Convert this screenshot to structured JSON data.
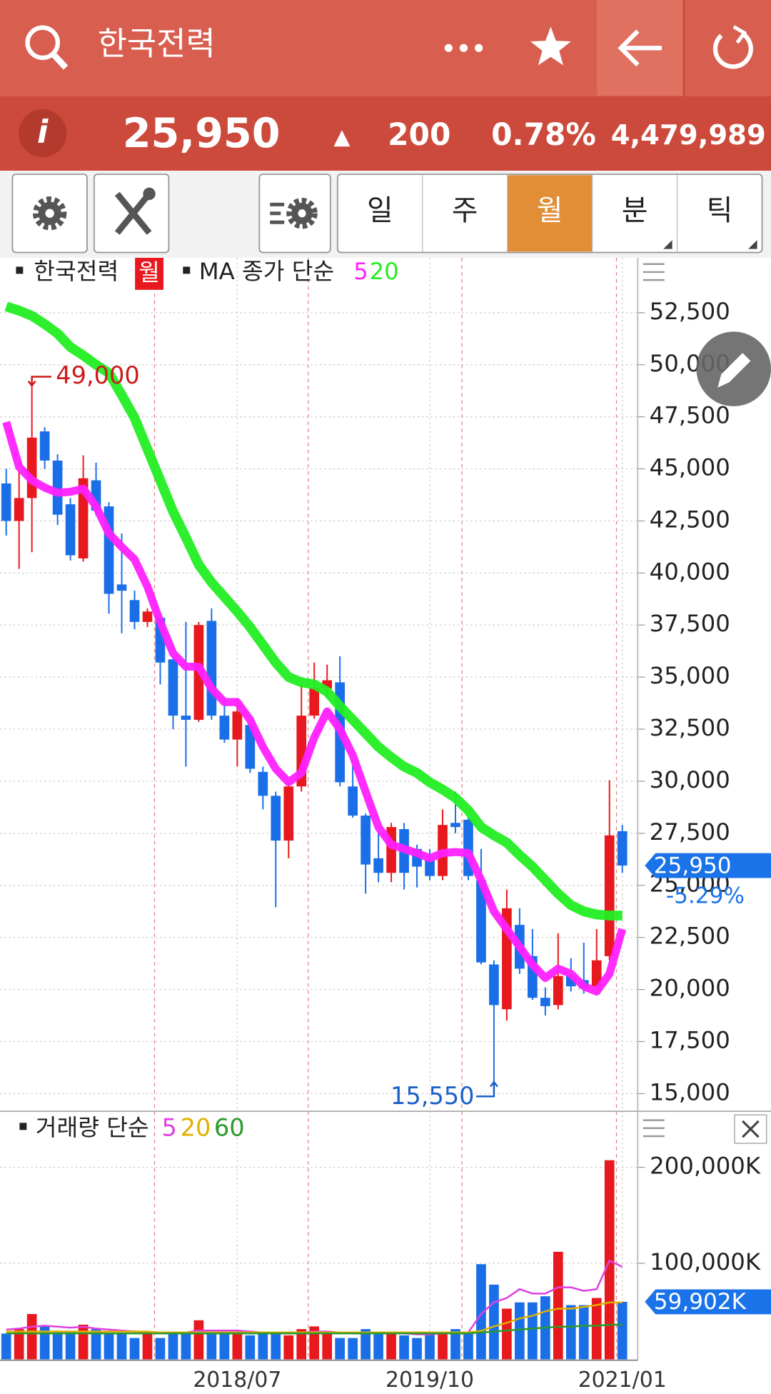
{
  "header": {
    "title": "한국전력"
  },
  "quote": {
    "price": "25,950",
    "arrow": "▲",
    "change": "200",
    "change_pct": "0.78%",
    "volume": "4,479,989"
  },
  "tabs": [
    "일",
    "주",
    "월",
    "분",
    "틱"
  ],
  "chart_data": [
    {
      "type": "candlestick",
      "legend_label": "한국전력",
      "period": "월",
      "legend_title": "MA 종가 단순",
      "up_color": "#e8191e",
      "down_color": "#1a6fe8",
      "ylim": [
        14150,
        55050
      ],
      "yticks": [
        {
          "value": 15000,
          "label": "15,000"
        },
        {
          "value": 17500,
          "label": "17,500"
        },
        {
          "value": 20000,
          "label": "20,000"
        },
        {
          "value": 22500,
          "label": "22,500"
        },
        {
          "value": 25000,
          "label": "25,000"
        },
        {
          "value": 27500,
          "label": "27,500"
        },
        {
          "value": 30000,
          "label": "30,000"
        },
        {
          "value": 32500,
          "label": "32,500"
        },
        {
          "value": 35000,
          "label": "35,000"
        },
        {
          "value": 37500,
          "label": "37,500"
        },
        {
          "value": 40000,
          "label": "40,000"
        },
        {
          "value": 42500,
          "label": "42,500"
        },
        {
          "value": 45000,
          "label": "45,000"
        },
        {
          "value": 47500,
          "label": "47,500"
        },
        {
          "value": 50000,
          "label": "50,000"
        },
        {
          "value": 52500,
          "label": "52,500"
        }
      ],
      "grid": true,
      "open": [
        44300,
        42500,
        43600,
        46800,
        45400,
        43300,
        40700,
        44450,
        43200,
        39450,
        38700,
        37650,
        37850,
        35850,
        33150,
        32950,
        37700,
        33150,
        32000,
        32700,
        30450,
        29300,
        27150,
        29750,
        33150,
        34450,
        34750,
        29750,
        28350,
        26300,
        25600,
        27700,
        26750,
        26200,
        25450,
        28000,
        28150,
        25250,
        21200,
        19050,
        23100,
        21600,
        19600,
        19250,
        20650,
        20450,
        20150,
        21600,
        27600
      ],
      "high": [
        45000,
        44900,
        49000,
        47000,
        45700,
        43600,
        45650,
        45300,
        43400,
        41900,
        39150,
        38300,
        38050,
        36000,
        37650,
        37650,
        38300,
        34000,
        34000,
        32850,
        30700,
        29500,
        29950,
        34650,
        35700,
        35600,
        36000,
        30800,
        28450,
        27600,
        28000,
        28000,
        26950,
        26750,
        28650,
        29500,
        28250,
        26750,
        21400,
        24800,
        23900,
        22900,
        20100,
        22700,
        21500,
        22250,
        22900,
        30050,
        27900
      ],
      "low": [
        41800,
        40200,
        41000,
        45000,
        42300,
        40600,
        40550,
        42750,
        38050,
        37100,
        37300,
        37400,
        34650,
        32500,
        30700,
        32850,
        32950,
        31850,
        30700,
        30400,
        28650,
        23950,
        26300,
        29500,
        33000,
        34000,
        29750,
        28250,
        24600,
        25150,
        25150,
        24800,
        24900,
        25250,
        25250,
        27500,
        25250,
        21200,
        15550,
        18500,
        20750,
        19500,
        18750,
        19050,
        19900,
        19800,
        20050,
        21400,
        25600
      ],
      "close": [
        42500,
        43600,
        46500,
        45400,
        42800,
        40850,
        44550,
        43000,
        39000,
        39150,
        37650,
        38150,
        35700,
        33150,
        32950,
        37500,
        33150,
        32000,
        33350,
        30600,
        29300,
        27150,
        29750,
        33150,
        34500,
        34850,
        29950,
        28350,
        26000,
        25600,
        27800,
        25600,
        25900,
        25450,
        27900,
        27800,
        25450,
        21300,
        19250,
        23900,
        21000,
        19600,
        19200,
        20650,
        20150,
        20050,
        21400,
        27400,
        25950
      ],
      "series": [
        {
          "name": "5",
          "color": "#ff20ff",
          "values": [
            47250,
            45100,
            44450,
            44100,
            43850,
            43900,
            44050,
            43200,
            41900,
            41250,
            40650,
            39350,
            37650,
            36150,
            35500,
            35500,
            34450,
            33800,
            33800,
            32950,
            31650,
            30600,
            29950,
            30400,
            32100,
            33350,
            32500,
            31250,
            29500,
            27800,
            26950,
            26750,
            26550,
            26300,
            26550,
            26600,
            26550,
            25250,
            23750,
            22900,
            22050,
            21200,
            20550,
            21000,
            20750,
            20150,
            19900,
            20750,
            22900
          ]
        },
        {
          "name": "20",
          "color": "#22ee22",
          "values": [
            52800,
            52600,
            52350,
            51950,
            51500,
            50850,
            50450,
            50000,
            49600,
            48550,
            47450,
            45950,
            44450,
            42950,
            41700,
            40400,
            39550,
            38850,
            38150,
            37400,
            36550,
            35700,
            35000,
            34750,
            34650,
            34300,
            33600,
            32950,
            32300,
            31650,
            31150,
            30700,
            30400,
            29950,
            29600,
            29200,
            28600,
            27800,
            27400,
            27050,
            26450,
            25900,
            25250,
            24600,
            24050,
            23750,
            23600,
            23550,
            23550
          ]
        }
      ],
      "annotations": [
        {
          "value": 49000,
          "label": "49,000",
          "color": "#cc1a1a"
        },
        {
          "value": 15550,
          "label": "15,550",
          "color": "#1a5fc8"
        }
      ],
      "last": {
        "value": 25950,
        "label": "25,950"
      },
      "last_change": "-5.29%"
    },
    {
      "type": "bar",
      "legend_title": "거래량 단순",
      "categories": [
        null,
        null,
        null,
        null,
        null,
        null,
        null,
        null,
        null,
        null,
        null,
        null,
        null,
        null,
        null,
        null,
        null,
        null,
        "2018/07",
        null,
        null,
        null,
        null,
        null,
        null,
        null,
        null,
        null,
        null,
        null,
        null,
        null,
        null,
        "2019/10",
        null,
        null,
        null,
        null,
        null,
        null,
        null,
        null,
        null,
        null,
        null,
        null,
        null,
        null,
        "2021/01"
      ],
      "ylim": [
        0,
        256500
      ],
      "yticks": [
        {
          "value": 100000,
          "label": "100,000K"
        },
        {
          "value": 200000,
          "label": "200,000K"
        }
      ],
      "grid": true,
      "values": [
        26850,
        31500,
        47200,
        34300,
        28700,
        28700,
        36100,
        31500,
        26850,
        26850,
        22200,
        26850,
        22200,
        26850,
        26850,
        40700,
        26850,
        28700,
        26850,
        25000,
        26850,
        26850,
        25000,
        31500,
        34300,
        26850,
        22200,
        22200,
        31500,
        26850,
        26850,
        25000,
        22200,
        26850,
        26850,
        31500,
        26850,
        99100,
        77800,
        52800,
        59300,
        59300,
        65700,
        112000,
        56500,
        56500,
        63900,
        207400,
        59902
      ],
      "series": [
        {
          "name": "5",
          "color": "#e040e0",
          "values": [
            31000,
            32000,
            34000,
            35000,
            34000,
            33000,
            34000,
            32000,
            31000,
            30000,
            29000,
            28000,
            27000,
            27000,
            28000,
            30000,
            30000,
            30000,
            30000,
            29000,
            28000,
            27000,
            27000,
            28000,
            29000,
            29000,
            28000,
            27000,
            27000,
            28000,
            28000,
            27000,
            26000,
            26000,
            27000,
            28000,
            28000,
            47200,
            59300,
            63900,
            73100,
            68500,
            68500,
            75000,
            75000,
            71300,
            73100,
            102800,
            96300
          ]
        },
        {
          "name": "20",
          "color": "#e0b000",
          "values": [
            29000,
            29000,
            29000,
            29000,
            29000,
            29000,
            29000,
            29000,
            29000,
            29000,
            29000,
            29000,
            28000,
            28000,
            28000,
            28000,
            28000,
            28000,
            28000,
            28000,
            28000,
            28000,
            28000,
            28000,
            28000,
            28000,
            28000,
            28000,
            28000,
            28000,
            28000,
            28000,
            28000,
            28000,
            28000,
            28000,
            28000,
            29600,
            34300,
            38000,
            42600,
            45400,
            50000,
            52800,
            52800,
            54600,
            56500,
            59300,
            59300
          ]
        },
        {
          "name": "60",
          "color": "#2a9a2a",
          "values": [
            27000,
            27000,
            27000,
            27000,
            27000,
            27000,
            27000,
            27000,
            27000,
            27000,
            27000,
            27000,
            27000,
            27000,
            27000,
            27000,
            27000,
            27000,
            27000,
            27000,
            27000,
            27000,
            27000,
            27000,
            27000,
            27000,
            27000,
            27000,
            27000,
            27000,
            27000,
            27000,
            27000,
            27000,
            27000,
            27000,
            27000,
            28000,
            29000,
            30000,
            31000,
            32000,
            33000,
            34000,
            34000,
            35000,
            35000,
            36000,
            36100
          ]
        }
      ],
      "last": {
        "value": 59902,
        "label": "59,902K"
      }
    }
  ]
}
